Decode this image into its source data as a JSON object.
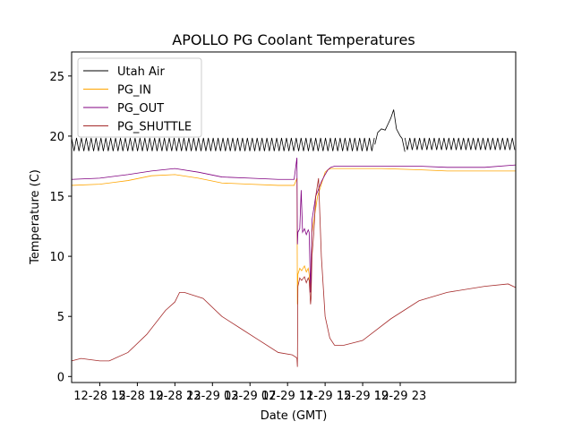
{
  "chart_data": {
    "type": "line",
    "title": "APOLLO PG Coolant Temperatures",
    "xlabel": "Date (GMT)",
    "ylabel": "Temperature (C)",
    "xlim": [
      12.0,
      59.3
    ],
    "ylim": [
      -0.5,
      27
    ],
    "x_unit": "hours since 2023-12-28 00:00 GMT (approx)",
    "x_ticks": [
      {
        "value": 15,
        "label": "12-28 15"
      },
      {
        "value": 19,
        "label": "12-28 19"
      },
      {
        "value": 23,
        "label": "12-28 23"
      },
      {
        "value": 27,
        "label": "12-29 03"
      },
      {
        "value": 31,
        "label": "12-29 07"
      },
      {
        "value": 35,
        "label": "12-29 11"
      },
      {
        "value": 39,
        "label": "12-29 15"
      },
      {
        "value": 43,
        "label": "12-29 19"
      },
      {
        "value": 47,
        "label": "12-29 23"
      }
    ],
    "y_ticks": [
      {
        "value": 0,
        "label": "0"
      },
      {
        "value": 5,
        "label": "5"
      },
      {
        "value": 10,
        "label": "10"
      },
      {
        "value": 15,
        "label": "15"
      },
      {
        "value": 20,
        "label": "20"
      },
      {
        "value": 25,
        "label": "25"
      }
    ],
    "legend_position": "upper-left",
    "series": [
      {
        "name": "Utah Air",
        "color": "#000000",
        "oscillation": {
          "segments": [
            [
              12.0,
              44.3,
              19.3,
              0.55
            ],
            [
              47.5,
              59.3,
              19.35,
              0.5
            ]
          ],
          "period": 0.52
        },
        "x": [
          44.3,
          44.6,
          45.0,
          45.4,
          45.7,
          46.0,
          46.3,
          46.6,
          46.8,
          47.0,
          47.2,
          47.5
        ],
        "y": [
          19.3,
          20.3,
          20.6,
          20.5,
          21.0,
          21.5,
          22.2,
          20.6,
          20.3,
          20.0,
          19.8,
          18.7
        ]
      },
      {
        "name": "PG_IN",
        "color": "#ffa500",
        "x": [
          12.0,
          15.0,
          18.0,
          20.5,
          23.0,
          25.5,
          28.0,
          31.0,
          34.0,
          35.7,
          36.0,
          36.05,
          36.1,
          36.3,
          36.5,
          36.8,
          37.0,
          37.2,
          37.3,
          37.45,
          37.6,
          37.8,
          38.0,
          38.2,
          38.4,
          38.6,
          38.8,
          39.0,
          39.3,
          39.6,
          40.0,
          40.5,
          41.0,
          45.0,
          49.0,
          52.0,
          56.0,
          59.3
        ],
        "y": [
          15.9,
          16.0,
          16.3,
          16.7,
          16.8,
          16.5,
          16.1,
          16.0,
          15.9,
          15.9,
          16.5,
          6.0,
          8.5,
          9.0,
          8.8,
          9.2,
          8.7,
          9.0,
          8.5,
          7.0,
          12.0,
          13.0,
          14.0,
          15.0,
          15.5,
          16.0,
          16.5,
          17.0,
          17.2,
          17.3,
          17.3,
          17.3,
          17.3,
          17.3,
          17.2,
          17.1,
          17.1,
          17.1
        ]
      },
      {
        "name": "PG_OUT",
        "color": "#800080",
        "x": [
          12.0,
          15.0,
          18.0,
          20.5,
          23.0,
          25.5,
          28.0,
          31.0,
          34.0,
          35.7,
          36.0,
          36.05,
          36.1,
          36.3,
          36.45,
          36.6,
          36.8,
          37.0,
          37.2,
          37.3,
          37.45,
          37.6,
          37.8,
          38.0,
          38.3,
          38.6,
          39.0,
          39.3,
          39.6,
          40.0,
          40.5,
          41.0,
          45.0,
          49.0,
          52.0,
          56.0,
          59.3
        ],
        "y": [
          16.4,
          16.5,
          16.8,
          17.1,
          17.3,
          17.0,
          16.6,
          16.5,
          16.4,
          16.4,
          18.2,
          11.0,
          12.0,
          12.3,
          15.5,
          12.0,
          12.3,
          11.8,
          12.2,
          12.0,
          7.0,
          13.0,
          14.0,
          15.0,
          15.6,
          16.2,
          16.8,
          17.2,
          17.4,
          17.5,
          17.5,
          17.5,
          17.5,
          17.5,
          17.4,
          17.4,
          17.6
        ]
      },
      {
        "name": "PG_SHUTTLE",
        "color": "#a52a2a",
        "x": [
          12.0,
          13.0,
          15.0,
          16.0,
          18.0,
          20.0,
          22.0,
          23.0,
          23.5,
          24.0,
          26.0,
          28.0,
          30.0,
          32.0,
          34.0,
          35.5,
          35.9,
          36.0,
          36.05,
          36.1,
          36.3,
          36.5,
          36.8,
          37.0,
          37.2,
          37.3,
          37.45,
          37.5,
          37.6,
          37.8,
          38.0,
          38.3,
          38.6,
          39.0,
          39.5,
          40.0,
          41.0,
          43.0,
          46.0,
          49.0,
          52.0,
          56.0,
          58.5,
          59.3
        ],
        "y": [
          1.3,
          1.5,
          1.3,
          1.3,
          2.0,
          3.5,
          5.5,
          6.2,
          7.0,
          7.0,
          6.5,
          5.0,
          4.0,
          3.0,
          2.0,
          1.8,
          1.6,
          1.5,
          0.8,
          7.5,
          8.2,
          8.0,
          8.3,
          7.8,
          8.2,
          8.0,
          6.0,
          6.5,
          10.0,
          12.0,
          15.0,
          16.5,
          10.0,
          5.0,
          3.2,
          2.6,
          2.6,
          3.0,
          4.8,
          6.3,
          7.0,
          7.5,
          7.7,
          7.4
        ]
      }
    ]
  }
}
